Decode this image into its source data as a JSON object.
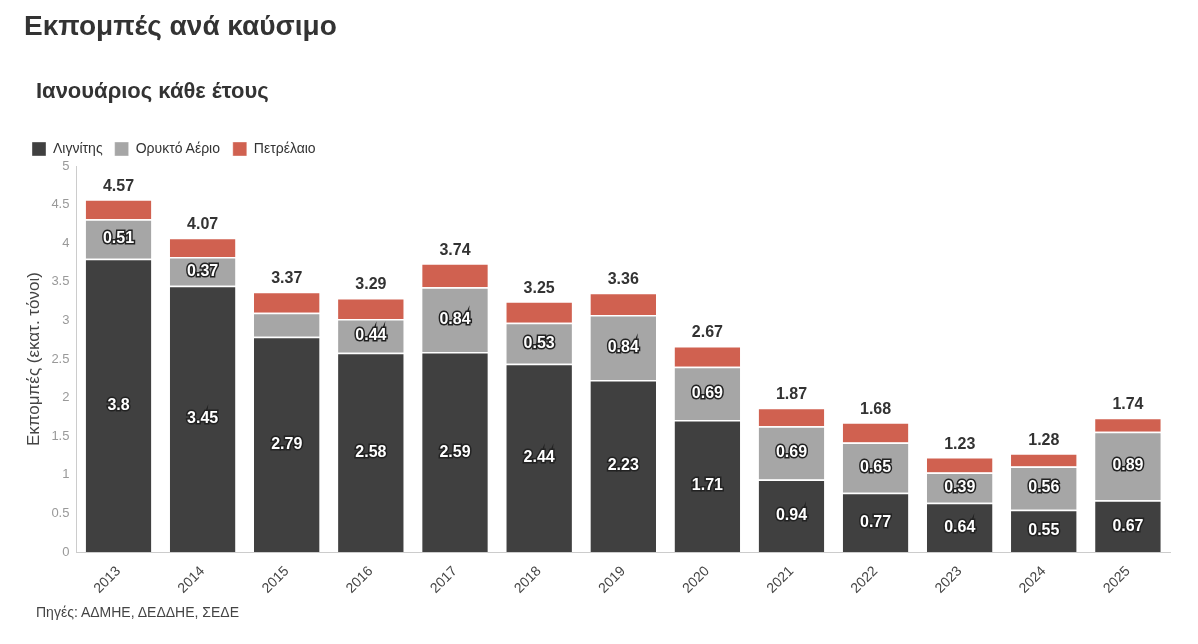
{
  "chart_data": {
    "type": "bar",
    "title": "Εκπομπές ανά καύσιμο",
    "subtitle": "Ιανουάριος κάθε έτους",
    "ylabel": "Εκπομπές (εκατ. τόνοι)",
    "categories": [
      "2013",
      "2014",
      "2015",
      "2016",
      "2017",
      "2018",
      "2019",
      "2020",
      "2021",
      "2022",
      "2023",
      "2024",
      "2025"
    ],
    "stacked": true,
    "series": [
      {
        "name": "Λιγνίτης",
        "color": "#404040",
        "values": [
          3.8,
          3.45,
          2.79,
          2.58,
          2.59,
          2.44,
          2.23,
          1.71,
          0.94,
          0.77,
          0.64,
          0.55,
          0.67
        ],
        "value_labels": [
          "3.8",
          "3.45",
          "2.79",
          "2.58",
          "2.59",
          "2.44",
          "2.23",
          "1.71",
          "0.94",
          "0.77",
          "0.64",
          "0.55",
          "0.67"
        ]
      },
      {
        "name": "Ορυκτό Αέριο",
        "color": "#a6a6a6",
        "values": [
          0.51,
          0.37,
          0.31,
          0.44,
          0.84,
          0.53,
          0.84,
          0.69,
          0.69,
          0.65,
          0.39,
          0.56,
          0.89
        ],
        "value_labels": [
          "0.51",
          "0.37",
          null,
          "0.44",
          "0.84",
          "0.53",
          "0.84",
          "0.69",
          "0.69",
          "0.65",
          "0.39",
          "0.56",
          "0.89"
        ]
      },
      {
        "name": "Πετρέλαιο",
        "color": "#d06150",
        "values": [
          0.26,
          0.25,
          0.27,
          0.27,
          0.31,
          0.28,
          0.29,
          0.27,
          0.24,
          0.26,
          0.2,
          0.17,
          0.18
        ]
      }
    ],
    "totals": [
      "4.57",
      "4.07",
      "3.37",
      "3.29",
      "3.74",
      "3.25",
      "3.36",
      "2.67",
      "1.87",
      "1.68",
      "1.23",
      "1.28",
      "1.74"
    ],
    "ylim": [
      0,
      5
    ],
    "yticks": [
      0,
      {
        "value": 0.5,
        "label": "0.5"
      },
      1,
      {
        "value": 1.5,
        "label": "1.5"
      },
      2,
      {
        "value": 2.5,
        "label": "2.5"
      },
      3,
      {
        "value": 3.5,
        "label": "3.5"
      },
      4,
      {
        "value": 4.5,
        "label": "4.5"
      },
      5
    ],
    "grid": false,
    "legend": "top left",
    "annotations": [
      "Πηγές: ΑΔΜΗΕ, ΔΕΔΔΗΕ, ΣΕΔΕ"
    ]
  }
}
